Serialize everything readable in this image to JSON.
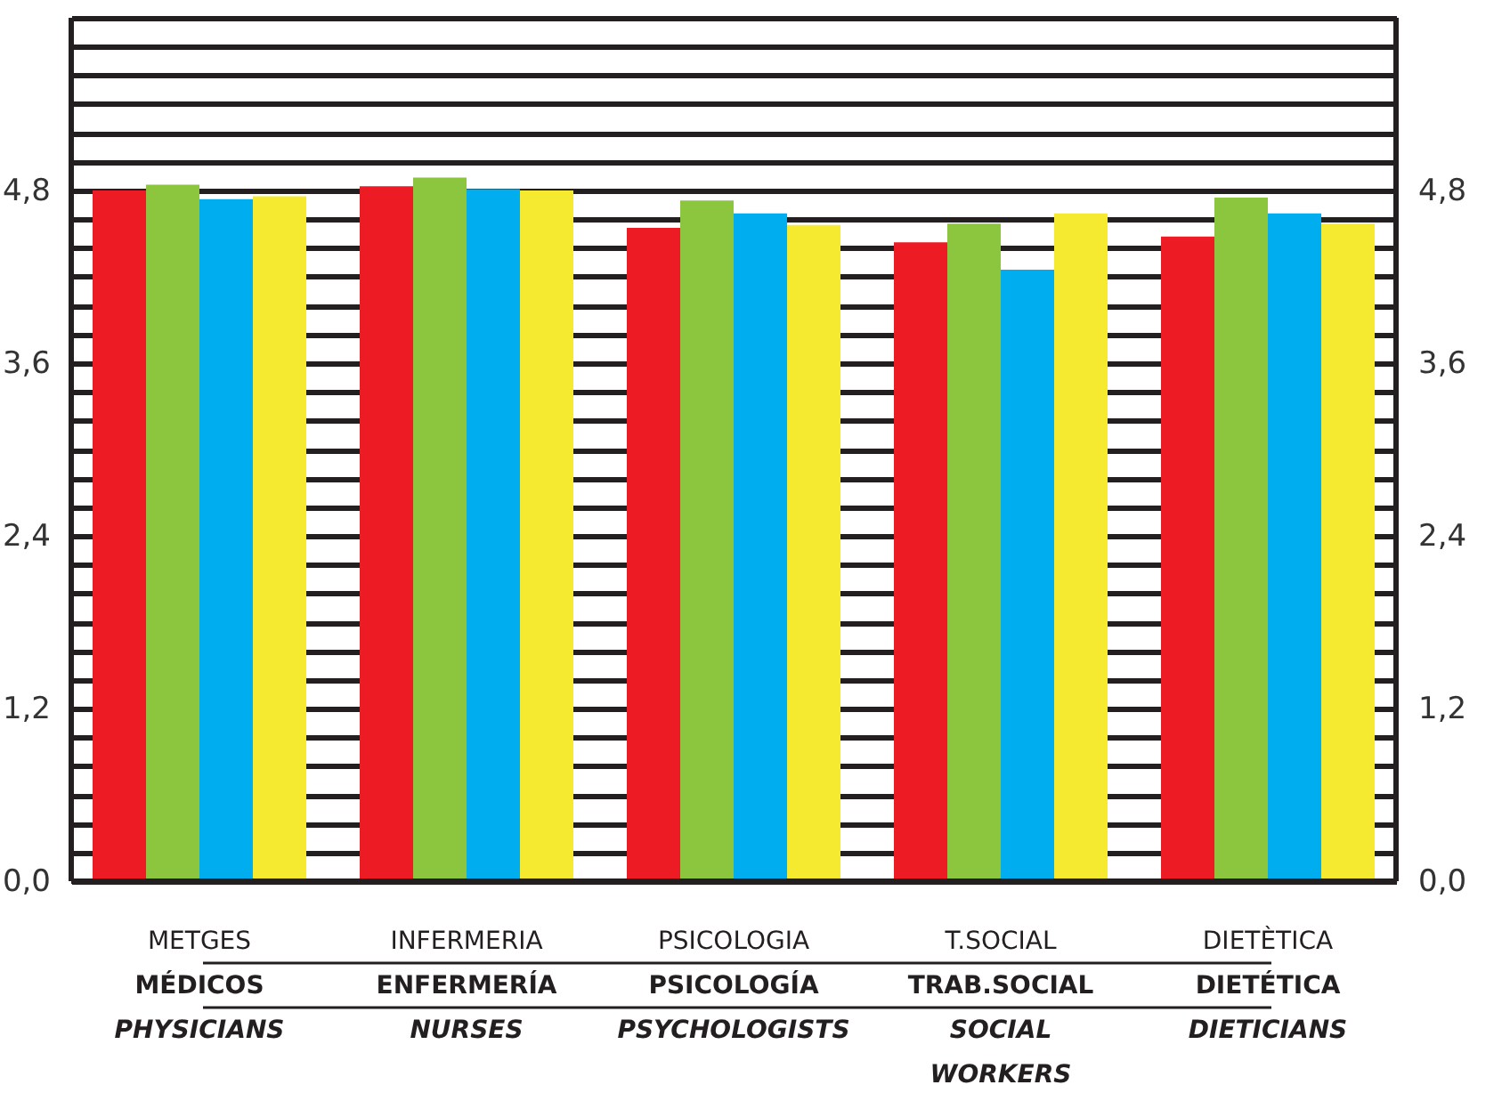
{
  "chart_data": {
    "type": "bar",
    "categories": [
      "METGES\nMÉDICOS\nPHYSICIANS",
      "INFERMERIA\nENFERMERÍA\nNURSES",
      "PSICOLOGIA\nPSICOLOGÍA\nPSYCHOLOGISTS",
      "T.SOCIAL\nTRAB.SOCIAL\nSOCIAL\nWORKERS",
      "DIETÈTICA\nDIETÉTICA\nDIETICIANS"
    ],
    "series": [
      {
        "color": "#ed1c24",
        "values": [
          4.8,
          4.83,
          4.54,
          4.44,
          4.48
        ]
      },
      {
        "color": "#8cc63f",
        "values": [
          4.84,
          4.89,
          4.73,
          4.57,
          4.75
        ]
      },
      {
        "color": "#00aeef",
        "values": [
          4.74,
          4.81,
          4.64,
          4.25,
          4.64
        ]
      },
      {
        "color": "#f5ea2f",
        "values": [
          4.76,
          4.8,
          4.56,
          4.64,
          4.57
        ]
      }
    ],
    "ylim": [
      0,
      6.0
    ],
    "yticks": [
      {
        "value": 0,
        "label": "0,0"
      },
      {
        "value": 0.2,
        "label": null
      },
      {
        "value": 0.4,
        "label": null
      },
      {
        "value": 0.6,
        "label": null
      },
      {
        "value": 0.8,
        "label": null
      },
      {
        "value": 1.0,
        "label": null
      },
      {
        "value": 1.2,
        "label": "1,2"
      },
      {
        "value": 1.4,
        "label": null
      },
      {
        "value": 1.6,
        "label": null
      },
      {
        "value": 1.8,
        "label": null
      },
      {
        "value": 2.0,
        "label": null
      },
      {
        "value": 2.2,
        "label": null
      },
      {
        "value": 2.4,
        "label": "2,4"
      },
      {
        "value": 2.6,
        "label": null
      },
      {
        "value": 2.8,
        "label": null
      },
      {
        "value": 3.0,
        "label": null
      },
      {
        "value": 3.2,
        "label": null
      },
      {
        "value": 3.4,
        "label": null
      },
      {
        "value": 3.6,
        "label": "3,6"
      },
      {
        "value": 3.8,
        "label": null
      },
      {
        "value": 4.0,
        "label": null
      },
      {
        "value": 4.2,
        "label": null
      },
      {
        "value": 4.4,
        "label": null
      },
      {
        "value": 4.6,
        "label": null
      },
      {
        "value": 4.8,
        "label": "4,8"
      },
      {
        "value": 5.0,
        "label": null
      },
      {
        "value": 5.2,
        "label": null
      },
      {
        "value": 5.4,
        "label": null
      },
      {
        "value": 5.6,
        "label": null
      },
      {
        "value": 5.8,
        "label": null
      },
      {
        "value": 6.0,
        "label": null
      }
    ],
    "y2lim": [
      0,
      6.0
    ],
    "y2ticks": [
      {
        "value": 0,
        "label": "0,0"
      },
      {
        "value": 1.2,
        "label": "1,2"
      },
      {
        "value": 2.4,
        "label": "2,4"
      },
      {
        "value": 3.6,
        "label": "3,6"
      },
      {
        "value": 4.8,
        "label": "4,8"
      }
    ],
    "grid": "y"
  }
}
